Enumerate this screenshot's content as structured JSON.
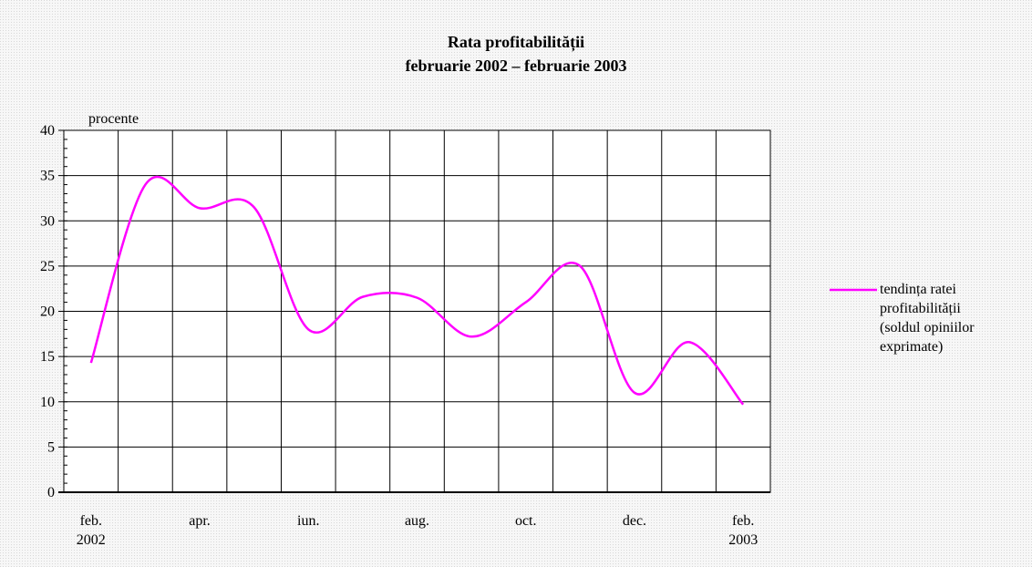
{
  "chart_data": {
    "type": "line",
    "title": "Rata profitabilității",
    "subtitle": "februarie 2002 – februarie 2003",
    "y_label": "procente",
    "categories": [
      "feb. 2002",
      null,
      "apr.",
      null,
      "iun.",
      null,
      "aug.",
      null,
      "oct.",
      null,
      "dec.",
      null,
      "feb. 2003"
    ],
    "series": [
      {
        "name": "tendința ratei profitabilității (soldul opiniilor exprimate)",
        "color": "#ff00ff",
        "values": [
          14.3,
          34.0,
          31.4,
          31.5,
          18.0,
          21.6,
          21.5,
          17.2,
          21.0,
          25.0,
          11.0,
          16.6,
          9.7
        ]
      }
    ],
    "ylim": [
      0,
      40
    ],
    "yticks": [
      0,
      5,
      10,
      15,
      20,
      25,
      30,
      35,
      40
    ],
    "grid": true,
    "smooth": true,
    "legend": "right"
  }
}
